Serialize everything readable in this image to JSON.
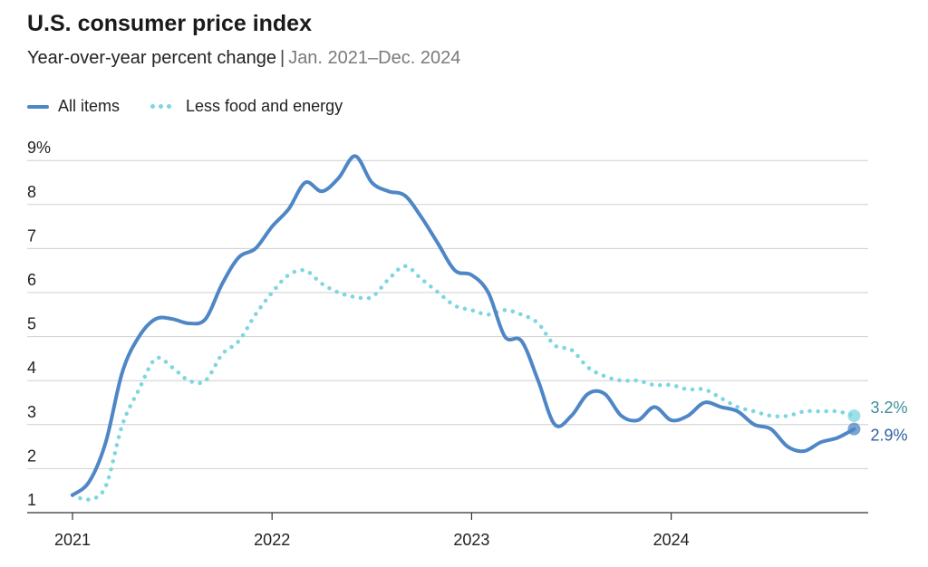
{
  "colors": {
    "all_items": "#4f86c6",
    "core": "#7dd6e0",
    "grid": "#cfcfcf",
    "axis": "#333333",
    "label_all": "#2f5f9e",
    "label_core": "#3b8f9a"
  },
  "chart_data": {
    "type": "line",
    "title": "U.S. consumer price index",
    "subtitle": "Year-over-year percent change",
    "date_range": "Jan. 2021–Dec. 2024",
    "xlabel": "",
    "ylabel": "",
    "ylim": [
      1,
      9.8
    ],
    "y_ticks": [
      1,
      2,
      3,
      4,
      5,
      6,
      7,
      8,
      9
    ],
    "y_tick_labels": [
      "1",
      "2",
      "3",
      "4",
      "5",
      "6",
      "7",
      "8",
      "9%"
    ],
    "x_tick_labels": [
      "2021",
      "2022",
      "2023",
      "2024"
    ],
    "x_tick_index": [
      0,
      12,
      24,
      36
    ],
    "legend": [
      "All items",
      "Less food and energy"
    ],
    "series": [
      {
        "name": "All items",
        "style": "solid",
        "end_label": "2.9%",
        "values": [
          1.4,
          1.7,
          2.6,
          4.2,
          5.0,
          5.4,
          5.4,
          5.3,
          5.4,
          6.2,
          6.8,
          7.0,
          7.5,
          7.9,
          8.5,
          8.3,
          8.6,
          9.1,
          8.5,
          8.3,
          8.2,
          7.7,
          7.1,
          6.5,
          6.4,
          6.0,
          5.0,
          4.9,
          4.0,
          3.0,
          3.2,
          3.7,
          3.7,
          3.2,
          3.1,
          3.4,
          3.1,
          3.2,
          3.5,
          3.4,
          3.3,
          3.0,
          2.9,
          2.5,
          2.4,
          2.6,
          2.7,
          2.9
        ]
      },
      {
        "name": "Less food and energy",
        "style": "dotted",
        "end_label": "3.2%",
        "values": [
          1.4,
          1.3,
          1.6,
          3.0,
          3.8,
          4.5,
          4.3,
          4.0,
          4.0,
          4.6,
          4.9,
          5.5,
          6.0,
          6.4,
          6.5,
          6.2,
          6.0,
          5.9,
          5.9,
          6.3,
          6.6,
          6.3,
          6.0,
          5.7,
          5.6,
          5.5,
          5.6,
          5.5,
          5.3,
          4.8,
          4.7,
          4.3,
          4.1,
          4.0,
          4.0,
          3.9,
          3.9,
          3.8,
          3.8,
          3.6,
          3.4,
          3.3,
          3.2,
          3.2,
          3.3,
          3.3,
          3.3,
          3.2
        ]
      }
    ]
  }
}
